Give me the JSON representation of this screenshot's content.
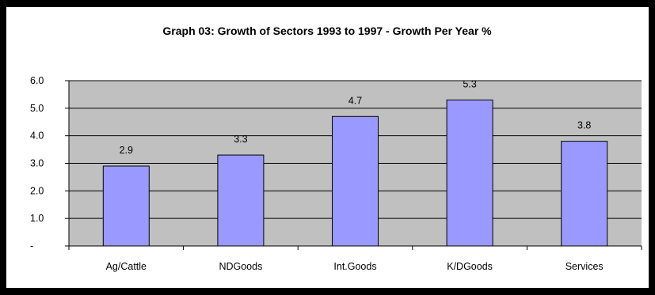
{
  "chart_data": {
    "type": "bar",
    "title": "Graph 03: Growth of Sectors 1993 to 1997 - Growth Per Year %",
    "categories": [
      "Ag/Cattle",
      "NDGoods",
      "Int.Goods",
      "K/DGoods",
      "Services"
    ],
    "values": [
      2.9,
      3.3,
      4.7,
      5.3,
      3.8
    ],
    "data_labels": [
      "2.9",
      "3.3",
      "4.7",
      "5.3",
      "3.8"
    ],
    "yticks": [
      {
        "value": 0,
        "label": "-"
      },
      {
        "value": 1,
        "label": "1.0"
      },
      {
        "value": 2,
        "label": "2.0"
      },
      {
        "value": 3,
        "label": "3.0"
      },
      {
        "value": 4,
        "label": "4.0"
      },
      {
        "value": 5,
        "label": "5.0"
      },
      {
        "value": 6,
        "label": "6.0"
      }
    ],
    "ylim": [
      0,
      6
    ],
    "xlabel": "",
    "ylabel": "",
    "grid": true,
    "legend": "none",
    "colors": {
      "bar_fill": "#9999ff",
      "plot_bg": "#c0c0c0",
      "gridline": "#000000",
      "frame": "#000000"
    }
  }
}
